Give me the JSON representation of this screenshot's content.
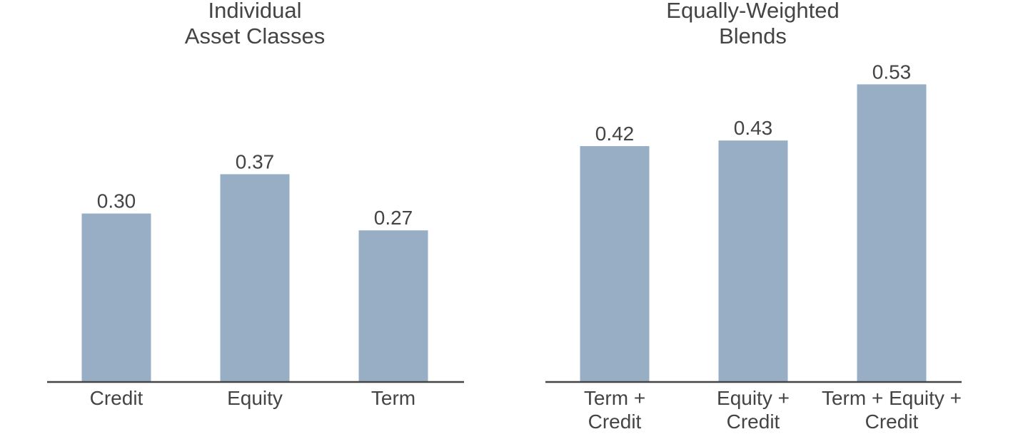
{
  "colors": {
    "bar": "#98AEC5",
    "axis": "#444444",
    "text": "#444444",
    "background": "#FFFFFF"
  },
  "chart_data": [
    {
      "type": "bar",
      "title": "Individual\nAsset Classes",
      "categories": [
        "Credit",
        "Equity",
        "Term"
      ],
      "values": [
        0.3,
        0.37,
        0.27
      ],
      "data_labels": [
        "0.30",
        "0.37",
        "0.27"
      ],
      "xlabel": "",
      "ylabel": "",
      "ylim": [
        0,
        0.6
      ],
      "grid": false,
      "legend": "none"
    },
    {
      "type": "bar",
      "title": "Equally-Weighted\nBlends",
      "categories": [
        "Term +\nCredit",
        "Equity +\nCredit",
        "Term + Equity +\nCredit"
      ],
      "values": [
        0.42,
        0.43,
        0.53
      ],
      "data_labels": [
        "0.42",
        "0.43",
        "0.53"
      ],
      "xlabel": "",
      "ylabel": "",
      "ylim": [
        0,
        0.6
      ],
      "grid": false,
      "legend": "none"
    }
  ]
}
